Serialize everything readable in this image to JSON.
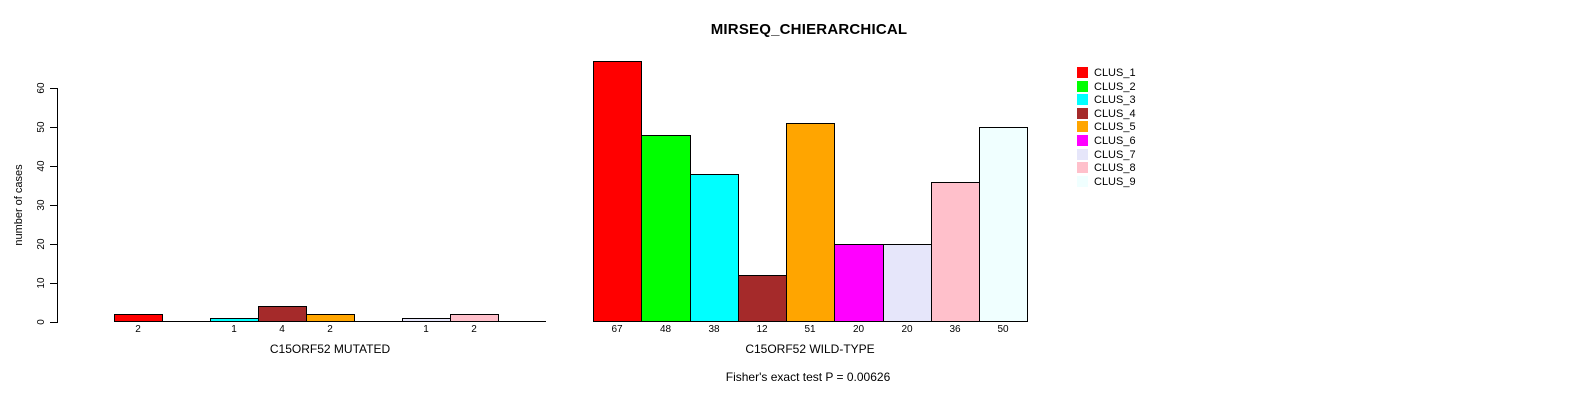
{
  "chart_data": {
    "type": "bar",
    "title": "MIRSEQ_CHIERARCHICAL",
    "ylabel": "number of cases",
    "ylim": [
      0,
      60
    ],
    "yticks": [
      0,
      10,
      20,
      30,
      40,
      50,
      60
    ],
    "grid": false,
    "legend_position": "right",
    "clusters": [
      {
        "label": "CLUS_1",
        "color": "#FF0000"
      },
      {
        "label": "CLUS_2",
        "color": "#00FF00"
      },
      {
        "label": "CLUS_3",
        "color": "#00FFFF"
      },
      {
        "label": "CLUS_4",
        "color": "#A52A2A"
      },
      {
        "label": "CLUS_5",
        "color": "#FFA500"
      },
      {
        "label": "CLUS_6",
        "color": "#FF00FF"
      },
      {
        "label": "CLUS_7",
        "color": "#E6E6FA"
      },
      {
        "label": "CLUS_8",
        "color": "#FFC0CB"
      },
      {
        "label": "CLUS_9",
        "color": "#F0FFFF"
      }
    ],
    "panels": [
      {
        "xlabel": "C15ORF52 MUTATED",
        "values": [
          2,
          0,
          1,
          4,
          2,
          0,
          1,
          2,
          0
        ]
      },
      {
        "xlabel": "C15ORF52 WILD-TYPE",
        "values": [
          67,
          48,
          38,
          12,
          51,
          20,
          20,
          36,
          50
        ]
      }
    ],
    "footnote": "Fisher's exact test P = 0.00626"
  }
}
